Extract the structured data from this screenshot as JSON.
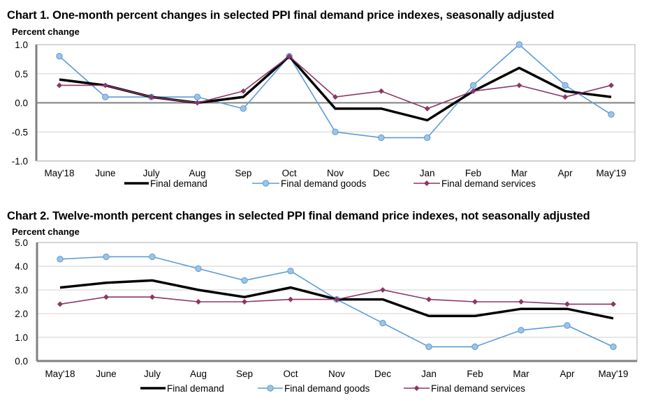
{
  "colors": {
    "final_demand": "#000000",
    "goods_line": "#5b9bd5",
    "goods_marker_fill": "#9dc3e6",
    "services": "#8b3766",
    "gridline": "#d0d0d0",
    "axis_frame": "#808080",
    "border": "#c8c8c8"
  },
  "chart_data": [
    {
      "type": "line",
      "title": "Chart 1. One-month percent changes in selected PPI final demand price indexes, seasonally adjusted",
      "xlabel": "",
      "ylabel": "Percent change",
      "ylim": [
        -1.0,
        1.0
      ],
      "yticks": [
        1.0,
        0.5,
        0.0,
        -0.5,
        -1.0
      ],
      "ytick_labels": [
        "1.0",
        "0.5",
        "0.0",
        "-0.5",
        "-1.0"
      ],
      "grid": true,
      "legend_position": "bottom-center",
      "categories": [
        "May'18",
        "June",
        "July",
        "Aug",
        "Sep",
        "Oct",
        "Nov",
        "Dec",
        "Jan",
        "Feb",
        "Mar",
        "Apr",
        "May'19"
      ],
      "series": [
        {
          "name": "Final demand",
          "key": "final_demand",
          "marker": "none",
          "values": [
            0.4,
            0.3,
            0.1,
            0.0,
            0.1,
            0.8,
            -0.1,
            -0.1,
            -0.3,
            0.2,
            0.6,
            0.2,
            0.1
          ]
        },
        {
          "name": "Final demand goods",
          "key": "goods",
          "marker": "circle",
          "values": [
            0.8,
            0.1,
            0.1,
            0.1,
            -0.1,
            0.8,
            -0.5,
            -0.6,
            -0.6,
            0.3,
            1.0,
            0.3,
            -0.2
          ]
        },
        {
          "name": "Final demand services",
          "key": "services",
          "marker": "diamond",
          "values": [
            0.3,
            0.3,
            0.1,
            0.0,
            0.2,
            0.8,
            0.1,
            0.2,
            -0.1,
            0.2,
            0.3,
            0.1,
            0.3
          ]
        }
      ]
    },
    {
      "type": "line",
      "title": "Chart 2. Twelve-month percent changes in selected PPI final demand price indexes, not seasonally adjusted",
      "xlabel": "",
      "ylabel": "Percent change",
      "ylim": [
        0.0,
        5.0
      ],
      "yticks": [
        5.0,
        4.0,
        3.0,
        2.0,
        1.0,
        0.0
      ],
      "ytick_labels": [
        "5.0",
        "4.0",
        "3.0",
        "2.0",
        "1.0",
        "0.0"
      ],
      "grid": true,
      "legend_position": "bottom-center",
      "categories": [
        "May'18",
        "June",
        "July",
        "Aug",
        "Sep",
        "Oct",
        "Nov",
        "Dec",
        "Jan",
        "Feb",
        "Mar",
        "Apr",
        "May'19"
      ],
      "series": [
        {
          "name": "Final demand",
          "key": "final_demand",
          "marker": "none",
          "values": [
            3.1,
            3.3,
            3.4,
            3.0,
            2.7,
            3.1,
            2.6,
            2.6,
            1.9,
            1.9,
            2.2,
            2.2,
            1.8
          ]
        },
        {
          "name": "Final demand goods",
          "key": "goods",
          "marker": "circle",
          "values": [
            4.3,
            4.4,
            4.4,
            3.9,
            3.4,
            3.8,
            2.6,
            1.6,
            0.6,
            0.6,
            1.3,
            1.5,
            0.6
          ]
        },
        {
          "name": "Final demand services",
          "key": "services",
          "marker": "diamond",
          "values": [
            2.4,
            2.7,
            2.7,
            2.5,
            2.5,
            2.6,
            2.6,
            3.0,
            2.6,
            2.5,
            2.5,
            2.4,
            2.4
          ]
        }
      ]
    }
  ]
}
